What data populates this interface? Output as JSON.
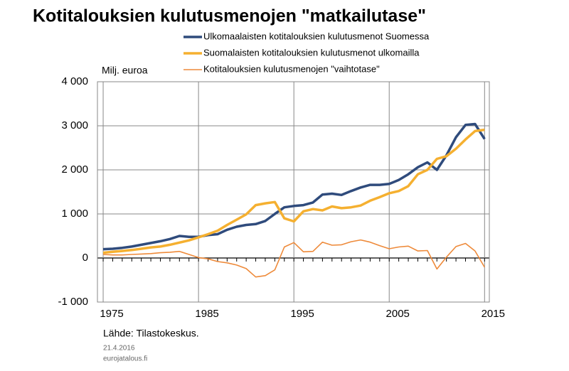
{
  "chart_data": {
    "type": "line",
    "title": "Kotitalouksien kulutusmenojen \"matkailutase\"",
    "y_label": "Milj. euroa",
    "source": "Lähde: Tilastokeskus.",
    "date": "21.4.2016",
    "site": "eurojatalous.fi",
    "x": [
      1975,
      1976,
      1977,
      1978,
      1979,
      1980,
      1981,
      1982,
      1983,
      1984,
      1985,
      1986,
      1987,
      1988,
      1989,
      1990,
      1991,
      1992,
      1993,
      1994,
      1995,
      1996,
      1997,
      1998,
      1999,
      2000,
      2001,
      2002,
      2003,
      2004,
      2005,
      2006,
      2007,
      2008,
      2009,
      2010,
      2011,
      2012,
      2013,
      2014,
      2015
    ],
    "series": [
      {
        "name": "Ulkomaalaisten kotitalouksien kulutusmenot Suomessa",
        "color": "#2f4b7c",
        "width": 3.5,
        "values": [
          200,
          210,
          230,
          260,
          300,
          340,
          380,
          430,
          500,
          480,
          480,
          520,
          540,
          640,
          710,
          750,
          770,
          840,
          1000,
          1150,
          1180,
          1200,
          1260,
          1440,
          1460,
          1430,
          1520,
          1600,
          1660,
          1660,
          1680,
          1770,
          1900,
          2060,
          2170,
          2000,
          2330,
          2740,
          3020,
          3040,
          2700
        ]
      },
      {
        "name": "Suomalaisten kotitalouksien kulutusmenot ulkomailla",
        "color": "#f5b030",
        "width": 3.5,
        "values": [
          120,
          140,
          160,
          180,
          210,
          240,
          260,
          300,
          350,
          400,
          470,
          540,
          620,
          750,
          870,
          990,
          1200,
          1240,
          1270,
          900,
          830,
          1060,
          1110,
          1080,
          1170,
          1130,
          1150,
          1190,
          1300,
          1380,
          1470,
          1520,
          1630,
          1900,
          2000,
          2250,
          2310,
          2480,
          2690,
          2880,
          2910
        ]
      },
      {
        "name": "Kotitalouksien kulutusmenojen \"vaihtotase\"",
        "color": "#ee8a3a",
        "width": 1.6,
        "values": [
          80,
          70,
          70,
          80,
          90,
          100,
          120,
          130,
          150,
          80,
          10,
          -20,
          -80,
          -110,
          -160,
          -240,
          -430,
          -400,
          -270,
          250,
          350,
          140,
          150,
          360,
          290,
          300,
          370,
          410,
          360,
          280,
          210,
          250,
          270,
          160,
          170,
          -250,
          20,
          260,
          330,
          160,
          -210
        ]
      }
    ],
    "xlim": [
      1974.4,
      2015.5
    ],
    "xticks": [
      1975,
      1985,
      1995,
      2005,
      2015
    ],
    "ylim": [
      -1000,
      4000
    ],
    "yticks": [
      {
        "value": -1000,
        "label": "-1 000"
      },
      0,
      {
        "value": 1000,
        "label": "1 000"
      },
      {
        "value": 2000,
        "label": "2 000"
      },
      {
        "value": 3000,
        "label": "3 000"
      },
      {
        "value": 4000,
        "label": "4 000"
      }
    ],
    "grid": true
  }
}
